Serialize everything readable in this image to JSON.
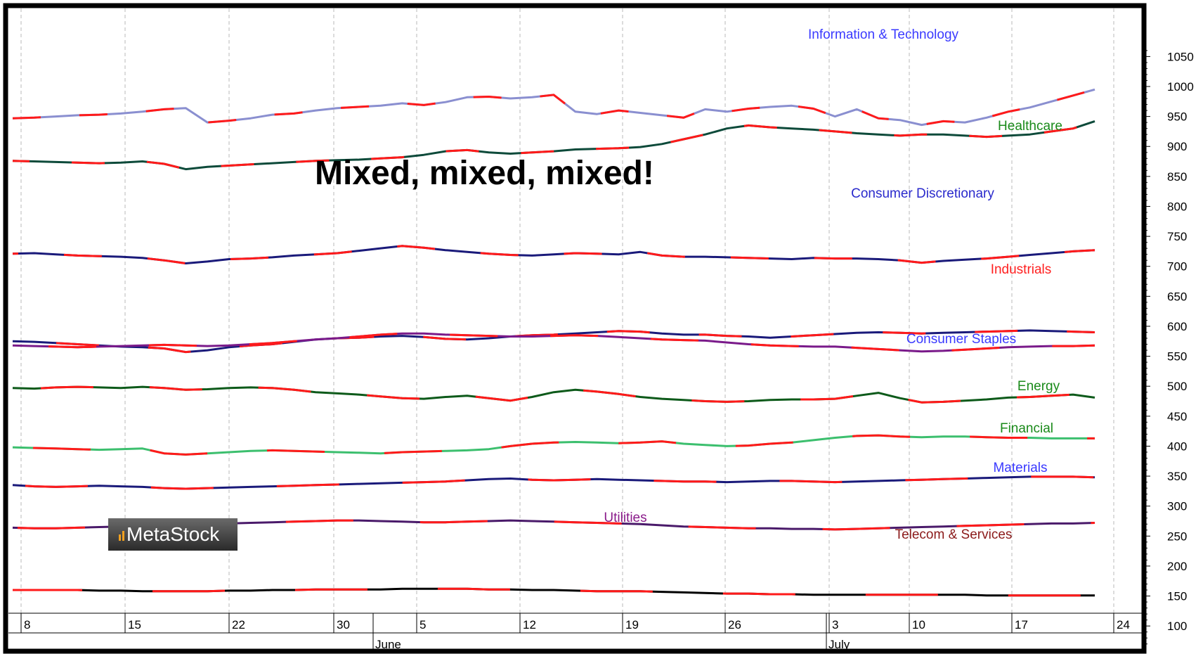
{
  "chart_data": {
    "type": "line",
    "title": "Mixed, mixed, mixed!",
    "watermark": "MetaStock",
    "ylim": [
      60,
      1060
    ],
    "y_ticks": [
      100,
      150,
      200,
      250,
      300,
      350,
      400,
      450,
      500,
      550,
      600,
      650,
      700,
      750,
      800,
      850,
      900,
      950,
      1000,
      1050
    ],
    "date_ticks": [
      "8",
      "15",
      "22",
      "30",
      "5",
      "12",
      "19",
      "26",
      "3",
      "10",
      "17",
      "24"
    ],
    "months": [
      "June",
      "July"
    ],
    "x": [
      0,
      2,
      4,
      6,
      8,
      10,
      12,
      14,
      16,
      18,
      20,
      22,
      24,
      26,
      28,
      30,
      32,
      34,
      36,
      38,
      40,
      42,
      44,
      46,
      48,
      50,
      52,
      54,
      56,
      58,
      60,
      62,
      64,
      66,
      68,
      70,
      72,
      74,
      76,
      78,
      80,
      82,
      84,
      86,
      88,
      90,
      92,
      94,
      96,
      98,
      100
    ],
    "series": [
      {
        "name": "Information & Technology",
        "color": "#8a8fd0",
        "label_color": "#3a3aff",
        "values": [
          947,
          948,
          950,
          952,
          953,
          955,
          958,
          962,
          964,
          940,
          943,
          947,
          953,
          955,
          960,
          964,
          966,
          968,
          972,
          969,
          974,
          982,
          983,
          980,
          982,
          986,
          958,
          954,
          960,
          956,
          952,
          948,
          962,
          958,
          963,
          966,
          968,
          963,
          950,
          962,
          947,
          944,
          936,
          942,
          940,
          948,
          958,
          965,
          975,
          985,
          995
        ]
      },
      {
        "name": "Healthcare",
        "color": "#0d4a3a",
        "label_color": "#1a8a1a",
        "values": [
          876,
          875,
          874,
          873,
          872,
          873,
          875,
          871,
          862,
          866,
          868,
          870,
          872,
          874,
          876,
          877,
          878,
          880,
          882,
          886,
          892,
          894,
          890,
          888,
          890,
          892,
          895,
          896,
          897,
          899,
          904,
          912,
          920,
          930,
          935,
          932,
          930,
          928,
          925,
          922,
          920,
          918,
          920,
          920,
          918,
          916,
          918,
          920,
          925,
          930,
          942
        ]
      },
      {
        "name": "Consumer Discretionary",
        "color": "#1a1a7a",
        "label_color": "#2a2acc",
        "values": [
          721,
          722,
          720,
          718,
          717,
          716,
          714,
          710,
          705,
          708,
          712,
          713,
          715,
          718,
          720,
          722,
          726,
          730,
          734,
          731,
          727,
          724,
          721,
          719,
          718,
          720,
          722,
          721,
          720,
          724,
          718,
          716,
          716,
          715,
          714,
          713,
          712,
          714,
          713,
          713,
          712,
          710,
          706,
          709,
          711,
          713,
          716,
          719,
          722,
          725,
          727
        ]
      },
      {
        "name": "Industrials",
        "color": "#1a1a7a",
        "label_color": "#ff2020",
        "values": [
          575,
          574,
          572,
          570,
          568,
          566,
          565,
          563,
          557,
          560,
          565,
          568,
          570,
          574,
          578,
          580,
          581,
          583,
          584,
          582,
          579,
          578,
          580,
          583,
          585,
          586,
          588,
          590,
          592,
          591,
          588,
          586,
          586,
          584,
          583,
          581,
          583,
          585,
          587,
          589,
          590,
          589,
          588,
          589,
          590,
          591,
          592,
          593,
          592,
          591,
          590
        ]
      },
      {
        "name": "Consumer Staples",
        "color": "#7a1a8a",
        "label_color": "#3a3aff",
        "values": [
          568,
          567,
          566,
          565,
          566,
          567,
          568,
          569,
          568,
          567,
          568,
          570,
          572,
          575,
          578,
          580,
          583,
          586,
          588,
          588,
          586,
          585,
          584,
          583,
          583,
          584,
          585,
          584,
          582,
          580,
          578,
          577,
          576,
          573,
          570,
          568,
          567,
          566,
          566,
          564,
          562,
          560,
          558,
          559,
          561,
          563,
          565,
          566,
          567,
          567,
          568
        ]
      },
      {
        "name": "Energy",
        "color": "#0d5a1a",
        "label_color": "#1a8a1a",
        "values": [
          497,
          496,
          498,
          499,
          498,
          497,
          499,
          497,
          494,
          495,
          497,
          498,
          497,
          494,
          490,
          488,
          486,
          483,
          480,
          479,
          482,
          484,
          480,
          476,
          482,
          490,
          494,
          491,
          487,
          482,
          479,
          477,
          475,
          474,
          475,
          477,
          478,
          478,
          479,
          484,
          489,
          480,
          473,
          474,
          476,
          478,
          481,
          482,
          484,
          486,
          481
        ]
      },
      {
        "name": "Financial",
        "color": "#3cbf6e",
        "label_color": "#1a8a1a",
        "values": [
          398,
          397,
          396,
          395,
          394,
          395,
          396,
          388,
          386,
          388,
          390,
          392,
          393,
          392,
          391,
          390,
          389,
          388,
          390,
          391,
          392,
          393,
          395,
          400,
          404,
          406,
          407,
          406,
          405,
          406,
          408,
          404,
          402,
          400,
          401,
          404,
          406,
          410,
          414,
          417,
          418,
          416,
          415,
          416,
          416,
          415,
          414,
          414,
          413,
          413,
          413
        ]
      },
      {
        "name": "Materials",
        "color": "#1a1a7a",
        "label_color": "#3a3aff",
        "values": [
          335,
          333,
          332,
          333,
          334,
          333,
          332,
          330,
          329,
          330,
          331,
          332,
          333,
          334,
          335,
          336,
          337,
          338,
          339,
          340,
          341,
          343,
          345,
          346,
          344,
          343,
          344,
          345,
          344,
          343,
          342,
          341,
          341,
          340,
          341,
          342,
          342,
          341,
          340,
          341,
          342,
          343,
          344,
          345,
          346,
          347,
          348,
          349,
          349,
          349,
          348
        ]
      },
      {
        "name": "Utilities",
        "color": "#4a1a6a",
        "label_color": "#8a1a8a",
        "values": [
          264,
          263,
          263,
          264,
          265,
          266,
          267,
          268,
          269,
          270,
          271,
          272,
          273,
          274,
          275,
          276,
          276,
          275,
          274,
          273,
          273,
          274,
          275,
          276,
          275,
          274,
          273,
          272,
          271,
          270,
          268,
          266,
          265,
          264,
          263,
          263,
          262,
          262,
          261,
          262,
          263,
          264,
          265,
          266,
          267,
          268,
          269,
          270,
          271,
          271,
          272
        ]
      },
      {
        "name": "Telecom & Services",
        "color": "#000000",
        "label_color": "#8b1a1a",
        "values": [
          160,
          160,
          160,
          160,
          159,
          159,
          158,
          158,
          158,
          158,
          159,
          159,
          160,
          160,
          161,
          161,
          161,
          161,
          162,
          162,
          162,
          162,
          161,
          161,
          160,
          160,
          159,
          158,
          158,
          158,
          157,
          156,
          155,
          154,
          154,
          153,
          153,
          152,
          152,
          152,
          152,
          152,
          152,
          152,
          152,
          151,
          151,
          151,
          151,
          151,
          151
        ]
      }
    ]
  }
}
